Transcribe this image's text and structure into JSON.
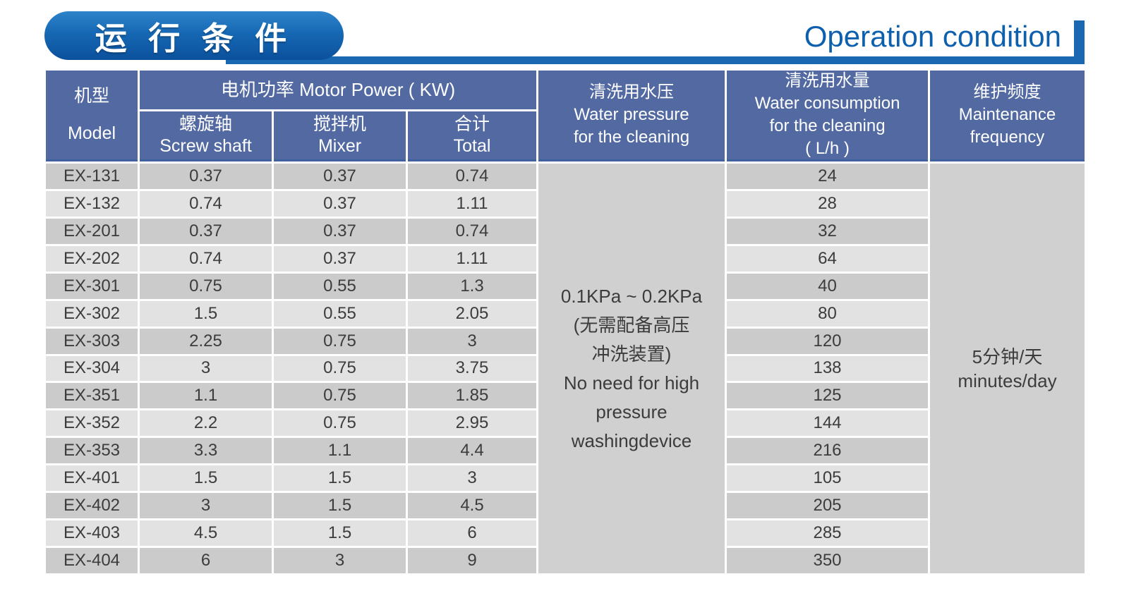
{
  "banner": {
    "title_zh": "运 行 条 件",
    "title_en": "Operation condition"
  },
  "table": {
    "headers": {
      "model_zh": "机型",
      "model_en": "Model",
      "motor_power": "电机功率  Motor Power ( KW)",
      "screw_zh": "螺旋轴",
      "screw_en": "Screw shaft",
      "mixer_zh": "搅拌机",
      "mixer_en": "Mixer",
      "total_zh": "合计",
      "total_en": "Total",
      "pressure_lines": [
        "清洗用水压",
        "Water pressure",
        "for the cleaning"
      ],
      "consumption_lines": [
        "清洗用水量",
        "Water consumption",
        "for the cleaning",
        "( L/h )"
      ],
      "maintenance_lines": [
        "维护频度",
        "Maintenance",
        "frequency"
      ]
    },
    "rows": [
      {
        "model": "EX-131",
        "screw_shaft": "0.37",
        "mixer": "0.37",
        "total": "0.74",
        "water_consumption": "24"
      },
      {
        "model": "EX-132",
        "screw_shaft": "0.74",
        "mixer": "0.37",
        "total": "1.11",
        "water_consumption": "28"
      },
      {
        "model": "EX-201",
        "screw_shaft": "0.37",
        "mixer": "0.37",
        "total": "0.74",
        "water_consumption": "32"
      },
      {
        "model": "EX-202",
        "screw_shaft": "0.74",
        "mixer": "0.37",
        "total": "1.11",
        "water_consumption": "64"
      },
      {
        "model": "EX-301",
        "screw_shaft": "0.75",
        "mixer": "0.55",
        "total": "1.3",
        "water_consumption": "40"
      },
      {
        "model": "EX-302",
        "screw_shaft": "1.5",
        "mixer": "0.55",
        "total": "2.05",
        "water_consumption": "80"
      },
      {
        "model": "EX-303",
        "screw_shaft": "2.25",
        "mixer": "0.75",
        "total": "3",
        "water_consumption": "120"
      },
      {
        "model": "EX-304",
        "screw_shaft": "3",
        "mixer": "0.75",
        "total": "3.75",
        "water_consumption": "138"
      },
      {
        "model": "EX-351",
        "screw_shaft": "1.1",
        "mixer": "0.75",
        "total": "1.85",
        "water_consumption": "125"
      },
      {
        "model": "EX-352",
        "screw_shaft": "2.2",
        "mixer": "0.75",
        "total": "2.95",
        "water_consumption": "144"
      },
      {
        "model": "EX-353",
        "screw_shaft": "3.3",
        "mixer": "1.1",
        "total": "4.4",
        "water_consumption": "216"
      },
      {
        "model": "EX-401",
        "screw_shaft": "1.5",
        "mixer": "1.5",
        "total": "3",
        "water_consumption": "105"
      },
      {
        "model": "EX-402",
        "screw_shaft": "3",
        "mixer": "1.5",
        "total": "4.5",
        "water_consumption": "205"
      },
      {
        "model": "EX-403",
        "screw_shaft": "4.5",
        "mixer": "1.5",
        "total": "6",
        "water_consumption": "285"
      },
      {
        "model": "EX-404",
        "screw_shaft": "6",
        "mixer": "3",
        "total": "9",
        "water_consumption": "350"
      }
    ],
    "water_pressure_lines": [
      "0.1KPa ~ 0.2KPa",
      "(无需配备高压",
      "冲洗装置)",
      "No need for high",
      "pressure",
      "washingdevice"
    ],
    "maintenance_value_lines": [
      "5分钟/天",
      "minutes/day"
    ]
  },
  "colors": {
    "header_blue": "#5269A2",
    "header_border": "#41609E",
    "row_dark": "#CBCBCB",
    "row_light": "#E2E2E2",
    "merged_gray": "#D0D0D0",
    "text_dark": "#3C3C3C",
    "accent_blue": "#1A67B2",
    "title_blue": "#0D60AD",
    "pill_top": "#2E83C9",
    "pill_bottom": "#0B509C"
  }
}
